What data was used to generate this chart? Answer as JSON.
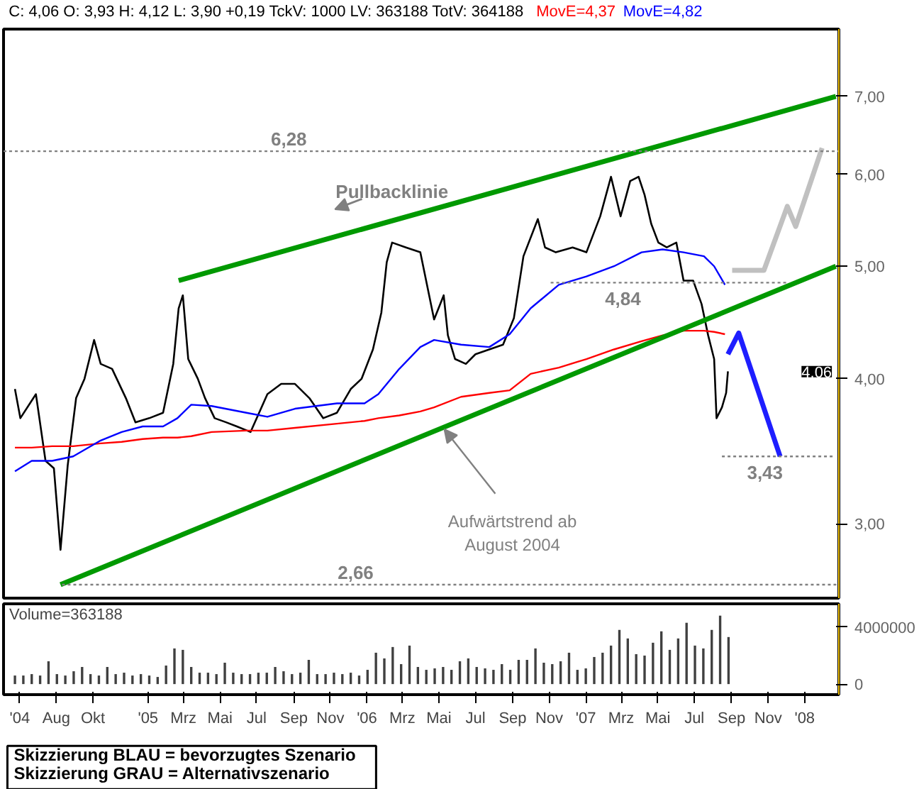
{
  "chart_data": [
    {
      "type": "line",
      "title": "C: 4,06 O: 3,93 H: 4,12 L: 3,90 +0,19 TckV: 1000 LV: 363188 TotV: 364188",
      "x": [
        "2004-05-24",
        "2004-06-02",
        "2004-06-28",
        "2004-07-14",
        "2004-07-28",
        "2004-08-08",
        "2004-08-20",
        "2004-09-03",
        "2004-09-17",
        "2004-10-03",
        "2004-10-14",
        "2004-11-02",
        "2004-11-25",
        "2004-12-11",
        "2005-01-03",
        "2005-01-26",
        "2005-02-12",
        "2005-02-21",
        "2005-02-28",
        "2005-03-09",
        "2005-03-25",
        "2005-04-06",
        "2005-04-22",
        "2005-05-11",
        "2005-05-29",
        "2005-06-21",
        "2005-07-19",
        "2005-08-11",
        "2005-09-03",
        "2005-09-27",
        "2005-10-20",
        "2005-11-12",
        "2005-12-05",
        "2005-12-23",
        "2006-01-11",
        "2006-01-25",
        "2006-02-03",
        "2006-02-12",
        "2006-03-07",
        "2006-03-31",
        "2006-04-23",
        "2006-05-09",
        "2006-05-16",
        "2006-05-28",
        "2006-06-15",
        "2006-07-01",
        "2006-07-24",
        "2006-08-16",
        "2006-09-03",
        "2006-09-19",
        "2006-10-13",
        "2006-10-25",
        "2006-11-12",
        "2006-12-10",
        "2007-01-02",
        "2007-01-25",
        "2007-02-12",
        "2007-02-28",
        "2007-03-16",
        "2007-03-30",
        "2007-04-09",
        "2007-04-20",
        "2007-05-02",
        "2007-05-16",
        "2007-06-01",
        "2007-06-13",
        "2007-06-29",
        "2007-07-13",
        "2007-07-24",
        "2007-08-03",
        "2007-08-07",
        "2007-08-16",
        "2007-08-23",
        "2007-08-26"
      ],
      "series": [
        {
          "color": "#000000",
          "values": [
            3.92,
            3.7,
            3.88,
            3.4,
            3.35,
            2.85,
            3.37,
            3.85,
            4.0,
            4.32,
            4.12,
            4.08,
            3.85,
            3.67,
            3.7,
            3.74,
            4.12,
            4.6,
            4.72,
            4.16,
            4.0,
            3.85,
            3.7,
            3.67,
            3.64,
            3.6,
            3.88,
            3.96,
            3.96,
            3.85,
            3.7,
            3.74,
            3.92,
            4.0,
            4.24,
            4.56,
            5.04,
            5.24,
            5.19,
            5.14,
            4.5,
            4.72,
            4.36,
            4.16,
            4.12,
            4.2,
            4.24,
            4.28,
            4.51,
            5.1,
            5.49,
            5.19,
            5.14,
            5.19,
            5.14,
            5.52,
            5.97,
            5.52,
            5.92,
            5.97,
            5.76,
            5.44,
            5.24,
            5.19,
            5.24,
            4.86,
            4.86,
            4.64,
            4.36,
            4.16,
            3.7,
            3.78,
            3.89,
            4.06
          ]
        },
        {
          "name": "MovE=4,37",
          "color": "#ff0000",
          "x": [
            "2004-05-24",
            "2004-06-21",
            "2004-07-25",
            "2004-08-29",
            "2004-10-14",
            "2004-11-18",
            "2004-12-23",
            "2005-01-26",
            "2005-02-19",
            "2005-03-14",
            "2005-04-17",
            "2005-06-14",
            "2005-07-19",
            "2005-09-03",
            "2005-11-12",
            "2005-12-28",
            "2006-01-20",
            "2006-02-24",
            "2006-03-31",
            "2006-04-23",
            "2006-06-07",
            "2006-07-24",
            "2006-08-27",
            "2006-10-01",
            "2006-11-17",
            "2007-01-02",
            "2007-02-17",
            "2007-04-04",
            "2007-05-09",
            "2007-06-13",
            "2007-07-17",
            "2007-08-03",
            "2007-08-21"
          ],
          "values": [
            3.49,
            3.49,
            3.5,
            3.5,
            3.52,
            3.53,
            3.55,
            3.56,
            3.56,
            3.57,
            3.6,
            3.61,
            3.61,
            3.63,
            3.66,
            3.68,
            3.7,
            3.72,
            3.75,
            3.78,
            3.86,
            3.89,
            3.91,
            4.04,
            4.09,
            4.16,
            4.24,
            4.31,
            4.36,
            4.4,
            4.4,
            4.39,
            4.37
          ]
        },
        {
          "name": "MovE=4,82",
          "color": "#0000ff",
          "x": [
            "2004-05-24",
            "2004-06-21",
            "2004-07-25",
            "2004-08-29",
            "2004-10-14",
            "2004-11-18",
            "2004-12-23",
            "2005-01-26",
            "2005-02-19",
            "2005-03-14",
            "2005-04-17",
            "2005-06-14",
            "2005-07-19",
            "2005-09-03",
            "2005-11-12",
            "2005-12-28",
            "2006-01-20",
            "2006-02-24",
            "2006-03-31",
            "2006-04-23",
            "2006-06-07",
            "2006-07-24",
            "2006-08-27",
            "2006-10-01",
            "2006-11-17",
            "2007-01-02",
            "2007-02-17",
            "2007-04-04",
            "2007-05-09",
            "2007-06-13",
            "2007-07-17",
            "2007-08-03",
            "2007-08-21"
          ],
          "values": [
            3.33,
            3.4,
            3.4,
            3.43,
            3.54,
            3.6,
            3.64,
            3.64,
            3.7,
            3.8,
            3.79,
            3.74,
            3.71,
            3.77,
            3.81,
            3.81,
            3.88,
            4.08,
            4.26,
            4.32,
            4.28,
            4.26,
            4.37,
            4.6,
            4.82,
            4.9,
            5.0,
            5.14,
            5.17,
            5.14,
            5.1,
            5.0,
            4.82
          ]
        },
        {
          "color": "#009900",
          "x": [
            "2004-08-08",
            "2008-02-22"
          ],
          "values": [
            2.66,
            5.0
          ]
        },
        {
          "color": "#009900",
          "x": [
            "2005-02-21",
            "2008-02-22"
          ],
          "values": [
            4.86,
            7.0
          ]
        },
        {
          "color": "#1e1eff",
          "x": [
            "2007-08-26",
            "2007-09-13",
            "2007-11-21"
          ],
          "values": [
            4.2,
            4.38,
            3.43
          ]
        },
        {
          "color": "#c0c0c0",
          "x": [
            "2007-09-02",
            "2007-10-25",
            "2007-12-03",
            "2007-12-17",
            "2008-01-30"
          ],
          "values": [
            4.96,
            4.96,
            5.63,
            5.41,
            6.32
          ]
        }
      ],
      "xlim": [
        "2004-05-05",
        "2008-02-27"
      ],
      "ylim": [
        2.59,
        8.0
      ],
      "yticks": [
        {
          "value": 3,
          "label": "3,00"
        },
        {
          "value": 4,
          "label": "4,00"
        },
        {
          "value": 5,
          "label": "5,00"
        },
        {
          "value": 6,
          "label": "6,00"
        },
        {
          "value": 7,
          "label": "7,00"
        }
      ],
      "log": true,
      "tick_labels": "y",
      "ref_lines": [
        {
          "axis": "y",
          "value": 6.28,
          "label": "6,28",
          "color": "#808080",
          "line_style": "dotted"
        },
        {
          "axis": "y",
          "value": 4.84,
          "label": "4,84",
          "color": "#808080",
          "line_style": "dotted"
        },
        {
          "axis": "y",
          "value": 3.43,
          "label": "3,43",
          "color": "#808080",
          "line_style": "dotted"
        },
        {
          "axis": "y",
          "value": 2.66,
          "label": "2,66",
          "color": "#808080",
          "line_style": "dotted"
        }
      ],
      "annotations": [
        "Pullbacklinie",
        {
          "text": "Aufwärtstrend ab\nAugust 2004",
          "x": "2006-05-10",
          "y": 3.62
        },
        "4,06",
        "Skizzierung BLAU = bevorzugtes Szenario",
        "Skizzierung GRAU = Alternativszenario"
      ]
    },
    {
      "type": "bar",
      "title": "Volume=363188",
      "color": "#404040",
      "x": [
        "2004-05-24",
        "2004-06-07",
        "2004-06-21",
        "2004-07-05",
        "2004-07-19",
        "2004-08-02",
        "2004-08-16",
        "2004-08-30",
        "2004-09-13",
        "2004-09-27",
        "2004-10-11",
        "2004-10-25",
        "2004-11-08",
        "2004-11-22",
        "2004-12-06",
        "2004-12-20",
        "2005-01-03",
        "2005-01-17",
        "2005-01-31",
        "2005-02-14",
        "2005-02-28",
        "2005-03-14",
        "2005-03-28",
        "2005-04-11",
        "2005-04-25",
        "2005-05-09",
        "2005-05-23",
        "2005-06-06",
        "2005-06-20",
        "2005-07-04",
        "2005-07-18",
        "2005-08-01",
        "2005-08-15",
        "2005-08-29",
        "2005-09-12",
        "2005-09-26",
        "2005-10-10",
        "2005-10-24",
        "2005-11-07",
        "2005-11-21",
        "2005-12-05",
        "2005-12-19",
        "2006-01-02",
        "2006-01-16",
        "2006-01-30",
        "2006-02-13",
        "2006-02-27",
        "2006-03-13",
        "2006-03-27",
        "2006-04-10",
        "2006-04-24",
        "2006-05-08",
        "2006-05-22",
        "2006-06-05",
        "2006-06-19",
        "2006-07-03",
        "2006-07-17",
        "2006-07-31",
        "2006-08-14",
        "2006-08-28",
        "2006-09-11",
        "2006-09-25",
        "2006-10-09",
        "2006-10-23",
        "2006-11-06",
        "2006-11-20",
        "2006-12-04",
        "2006-12-18",
        "2007-01-01",
        "2007-01-15",
        "2007-01-29",
        "2007-02-12",
        "2007-02-26",
        "2007-03-12",
        "2007-03-26",
        "2007-04-09",
        "2007-04-23",
        "2007-05-07",
        "2007-05-21",
        "2007-06-04",
        "2007-06-18",
        "2007-07-02",
        "2007-07-16",
        "2007-07-30",
        "2007-08-13",
        "2007-08-27"
      ],
      "values": [
        600000,
        600000,
        700000,
        600000,
        1600000,
        700000,
        600000,
        900000,
        1200000,
        700000,
        600000,
        1200000,
        700000,
        800000,
        600000,
        700000,
        600000,
        500000,
        1300000,
        2500000,
        2400000,
        1200000,
        800000,
        800000,
        700000,
        1500000,
        800000,
        700000,
        700000,
        800000,
        800000,
        1200000,
        900000,
        700000,
        800000,
        1700000,
        700000,
        700000,
        800000,
        700000,
        800000,
        600000,
        1000000,
        2200000,
        1800000,
        2600000,
        1400000,
        2700000,
        1200000,
        1000000,
        1100000,
        1200000,
        1000000,
        1600000,
        1800000,
        1200000,
        1100000,
        1000000,
        1400000,
        1000000,
        1700000,
        1700000,
        2500000,
        1500000,
        1400000,
        1600000,
        2200000,
        1000000,
        1100000,
        1900000,
        2200000,
        2700000,
        3800000,
        3200000,
        2100000,
        2000000,
        2900000,
        3700000,
        2400000,
        3200000,
        4300000,
        2700000,
        2500000,
        3800000,
        4800000,
        3300000
      ],
      "xlim": [
        "2004-05-05",
        "2008-02-27"
      ],
      "xticks": [
        {
          "value": "2004-06-01",
          "label": "'04"
        },
        {
          "value": "2004-08-01",
          "label": "Aug"
        },
        {
          "value": "2004-10-01",
          "label": "Okt"
        },
        {
          "value": "2005-01-01",
          "label": "'05"
        },
        {
          "value": "2005-03-01",
          "label": "Mrz"
        },
        {
          "value": "2005-05-01",
          "label": "Mai"
        },
        {
          "value": "2005-07-01",
          "label": "Jul"
        },
        {
          "value": "2005-09-01",
          "label": "Sep"
        },
        {
          "value": "2005-11-01",
          "label": "Nov"
        },
        {
          "value": "2006-01-01",
          "label": "'06"
        },
        {
          "value": "2006-03-01",
          "label": "Mrz"
        },
        {
          "value": "2006-05-01",
          "label": "Mai"
        },
        {
          "value": "2006-07-01",
          "label": "Jul"
        },
        {
          "value": "2006-09-01",
          "label": "Sep"
        },
        {
          "value": "2006-11-01",
          "label": "Nov"
        },
        {
          "value": "2007-01-01",
          "label": "'07"
        },
        {
          "value": "2007-03-01",
          "label": "Mrz"
        },
        {
          "value": "2007-05-01",
          "label": "Mai"
        },
        {
          "value": "2007-07-01",
          "label": "Jul"
        },
        {
          "value": "2007-09-01",
          "label": "Sep"
        },
        {
          "value": "2007-11-01",
          "label": "Nov"
        },
        {
          "value": "2008-01-01",
          "label": "'08"
        }
      ],
      "ylim": [
        -740000,
        5630000
      ],
      "yticks": [
        0,
        4000000
      ]
    }
  ]
}
